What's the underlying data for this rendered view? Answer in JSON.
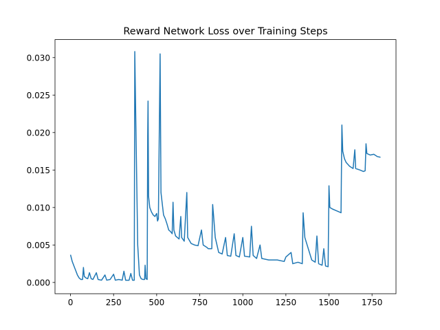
{
  "chart_data": {
    "type": "line",
    "title": "Reward Network Loss over Training Steps",
    "x": [
      0,
      10,
      20,
      30,
      40,
      50,
      60,
      70,
      75,
      80,
      90,
      100,
      110,
      120,
      130,
      150,
      160,
      180,
      200,
      210,
      230,
      250,
      260,
      280,
      300,
      310,
      320,
      340,
      350,
      360,
      370,
      373,
      380,
      390,
      400,
      410,
      420,
      430,
      433,
      438,
      445,
      448,
      450,
      453,
      460,
      470,
      480,
      490,
      500,
      505,
      510,
      520,
      525,
      530,
      540,
      550,
      560,
      570,
      580,
      590,
      595,
      600,
      610,
      620,
      630,
      640,
      645,
      660,
      675,
      680,
      700,
      720,
      740,
      760,
      770,
      790,
      800,
      820,
      825,
      830,
      840,
      850,
      860,
      880,
      900,
      910,
      930,
      950,
      960,
      980,
      1000,
      1010,
      1040,
      1050,
      1060,
      1080,
      1100,
      1110,
      1150,
      1200,
      1240,
      1250,
      1280,
      1290,
      1320,
      1345,
      1350,
      1360,
      1380,
      1400,
      1420,
      1430,
      1440,
      1460,
      1470,
      1480,
      1495,
      1500,
      1505,
      1520,
      1540,
      1560,
      1570,
      1575,
      1580,
      1590,
      1600,
      1620,
      1640,
      1650,
      1655,
      1680,
      1700,
      1710,
      1715,
      1720,
      1740,
      1760,
      1780,
      1799
    ],
    "series": [
      {
        "color": "#1f77b4",
        "values": [
          0.0037,
          0.0028,
          0.0022,
          0.0016,
          0.001,
          0.0006,
          0.0004,
          0.0004,
          0.002,
          0.0008,
          0.0006,
          0.0005,
          0.0013,
          0.0005,
          0.0004,
          0.0013,
          0.0004,
          0.0003,
          0.001,
          0.0003,
          0.0004,
          0.0011,
          0.0003,
          0.0004,
          0.0003,
          0.0015,
          0.0003,
          0.0003,
          0.0012,
          0.0003,
          0.0003,
          0.0308,
          0.02,
          0.005,
          0.001,
          0.0005,
          0.0004,
          0.0004,
          0.0023,
          0.0005,
          0.0004,
          0.0195,
          0.0242,
          0.0115,
          0.01,
          0.0094,
          0.009,
          0.0088,
          0.0092,
          0.0082,
          0.0085,
          0.0305,
          0.012,
          0.011,
          0.009,
          0.0085,
          0.0078,
          0.007,
          0.0068,
          0.0065,
          0.0107,
          0.007,
          0.0062,
          0.006,
          0.0058,
          0.0088,
          0.006,
          0.0055,
          0.012,
          0.006,
          0.0052,
          0.005,
          0.0049,
          0.007,
          0.005,
          0.0047,
          0.0045,
          0.0045,
          0.0104,
          0.009,
          0.006,
          0.005,
          0.004,
          0.0038,
          0.006,
          0.0036,
          0.0035,
          0.0065,
          0.0036,
          0.0034,
          0.006,
          0.0035,
          0.0034,
          0.0075,
          0.0036,
          0.0032,
          0.005,
          0.0032,
          0.003,
          0.003,
          0.0028,
          0.0034,
          0.004,
          0.0025,
          0.0027,
          0.0025,
          0.0093,
          0.006,
          0.0045,
          0.003,
          0.0027,
          0.0062,
          0.0025,
          0.0023,
          0.0045,
          0.0022,
          0.0021,
          0.0129,
          0.01,
          0.0098,
          0.0096,
          0.0094,
          0.0093,
          0.021,
          0.0175,
          0.0165,
          0.016,
          0.0155,
          0.0152,
          0.0177,
          0.0152,
          0.015,
          0.0148,
          0.0149,
          0.0185,
          0.0172,
          0.017,
          0.0171,
          0.0168,
          0.0167
        ]
      }
    ],
    "xlim": [
      -90,
      1889
    ],
    "ylim": [
      -0.0015,
      0.0324
    ],
    "xticks": [
      0,
      250,
      500,
      750,
      1000,
      1250,
      1500,
      1750
    ],
    "yticks": [
      {
        "value": 0,
        "label": "0.000"
      },
      {
        "value": 0.005,
        "label": "0.005"
      },
      {
        "value": 0.01,
        "label": "0.010"
      },
      {
        "value": 0.015,
        "label": "0.015"
      },
      {
        "value": 0.02,
        "label": "0.020"
      },
      {
        "value": 0.025,
        "label": "0.025"
      },
      {
        "value": 0.03,
        "label": "0.030"
      }
    ]
  }
}
